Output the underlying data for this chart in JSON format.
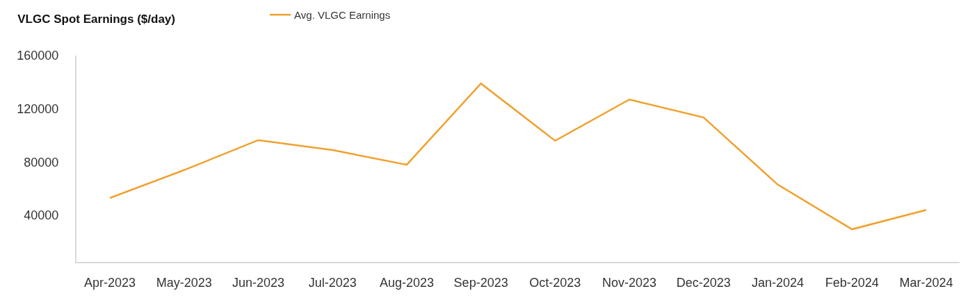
{
  "chart_data": {
    "type": "line",
    "title": "VLGC Spot Earnings ($/day)",
    "categories": [
      "Apr-2023",
      "May-2023",
      "Jun-2023",
      "Jul-2023",
      "Aug-2023",
      "Sep-2023",
      "Oct-2023",
      "Nov-2023",
      "Dec-2023",
      "Jan-2024",
      "Feb-2024",
      "Mar-2024"
    ],
    "series": [
      {
        "name": "Avg. VLGC Earnings",
        "color": "#f0a02c",
        "values": [
          53000,
          74000,
          96500,
          89000,
          78000,
          139000,
          96000,
          127000,
          113500,
          63000,
          29500,
          44000
        ]
      }
    ],
    "ylim": [
      5000,
      160000
    ],
    "yticks": [
      40000,
      80000,
      120000,
      160000
    ],
    "legend": "top",
    "marker": "none",
    "line_style": "solid"
  }
}
